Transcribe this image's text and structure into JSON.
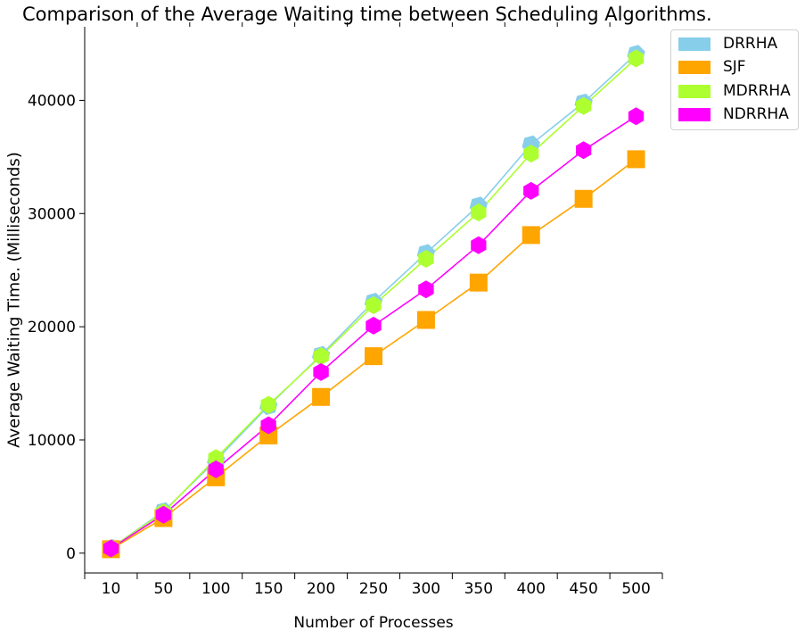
{
  "chart_data": {
    "type": "line",
    "title": "Comparison of the Average Waiting time between Scheduling Algorithms.",
    "xlabel": "Number of Processes",
    "ylabel": "Average Waiting Time. (Milliseconds)",
    "categories": [
      "10",
      "50",
      "100",
      "150",
      "200",
      "250",
      "300",
      "350",
      "400",
      "450",
      "500"
    ],
    "ylim": [
      -1750,
      46500
    ],
    "yticks": [
      0,
      10000,
      20000,
      30000,
      40000
    ],
    "grid": false,
    "legend": "outside-top-right",
    "series": [
      {
        "name": "DRRHA",
        "color": "#87CEEB",
        "marker": "diamond",
        "values": [
          450,
          3700,
          8200,
          13000,
          17500,
          22200,
          26500,
          30700,
          36100,
          39800,
          44100
        ]
      },
      {
        "name": "SJF",
        "color": "#FFA500",
        "marker": "square",
        "values": [
          350,
          3100,
          6700,
          10400,
          13800,
          17400,
          20600,
          23900,
          28100,
          31300,
          34800
        ]
      },
      {
        "name": "MDRRHA",
        "color": "#ADFF2F",
        "marker": "hexagon",
        "values": [
          450,
          3600,
          8400,
          13100,
          17400,
          21900,
          26000,
          30100,
          35300,
          39500,
          43700
        ]
      },
      {
        "name": "NDRRHA",
        "color": "#FF00FF",
        "marker": "hexagon",
        "values": [
          420,
          3400,
          7400,
          11300,
          16000,
          20100,
          23300,
          27200,
          32000,
          35600,
          38600
        ]
      }
    ]
  }
}
